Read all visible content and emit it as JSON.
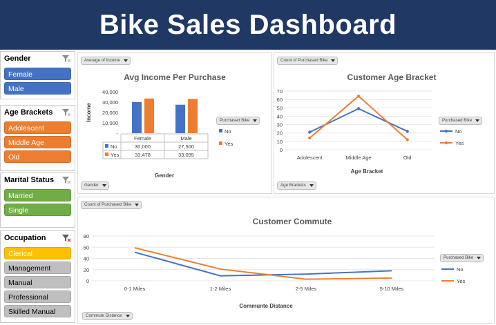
{
  "banner": {
    "title": "Bike Sales Dashboard"
  },
  "colors": {
    "banner": "#1f3864",
    "no": "#4472c4",
    "yes": "#ed7d31",
    "green": "#70ad47",
    "gold": "#ffc000",
    "grey": "#bfbfbf"
  },
  "slicers": {
    "gender": {
      "title": "Gender",
      "items": [
        "Female",
        "Male"
      ]
    },
    "age": {
      "title": "Age Brackets",
      "items": [
        "Adolescent",
        "Middle Age",
        "Old"
      ]
    },
    "marital": {
      "title": "Marital Status",
      "items": [
        "Married",
        "Single"
      ]
    },
    "occupation": {
      "title": "Occupation",
      "items": [
        "Clerical",
        "Management",
        "Manual",
        "Professional",
        "Skilled Manual"
      ]
    }
  },
  "income_panel": {
    "value_button": "Average of Income",
    "axis_button": "Gender",
    "legend_button": "Purchased Bike",
    "legend": [
      "No",
      "Yes"
    ],
    "table": {
      "headers": [
        "Female",
        "Male"
      ],
      "rows": [
        {
          "label": "No",
          "values": [
            "30,000",
            "27,500"
          ]
        },
        {
          "label": "Yes",
          "values": [
            "33,478",
            "33,095"
          ]
        }
      ]
    }
  },
  "age_panel": {
    "value_button": "Count of Purchased Bike",
    "axis_button": "Age Brackets",
    "legend_button": "Purchased Bike",
    "legend": [
      "No",
      "Yes"
    ]
  },
  "commute_panel": {
    "value_button": "Count of Purchased Bike",
    "axis_button": "Commute Distance",
    "legend_button": "Purchased Bike",
    "legend": [
      "No",
      "Yes"
    ]
  },
  "chart_data": [
    {
      "type": "bar",
      "title": "Avg Income Per Purchase",
      "xlabel": "Gender",
      "ylabel": "Income",
      "categories": [
        "Female",
        "Male"
      ],
      "series": [
        {
          "name": "No",
          "values": [
            30000,
            27500
          ]
        },
        {
          "name": "Yes",
          "values": [
            33478,
            33095
          ]
        }
      ],
      "ylim": [
        0,
        40000
      ],
      "yticks": [
        "40,000",
        "30,000",
        "20,000",
        "10,000",
        "-"
      ]
    },
    {
      "type": "line",
      "title": "Customer Age Bracket",
      "xlabel": "Age Bracket",
      "categories": [
        "Adolescent",
        "Middle Age",
        "Old"
      ],
      "series": [
        {
          "name": "No",
          "values": [
            21,
            49,
            22
          ]
        },
        {
          "name": "Yes",
          "values": [
            14,
            64,
            12
          ]
        }
      ],
      "ylim": [
        0,
        70
      ],
      "yticks": [
        "70",
        "60",
        "50",
        "40",
        "30",
        "20",
        "10",
        "0"
      ]
    },
    {
      "type": "line",
      "title": "Customer Commute",
      "xlabel": "Communte Distance",
      "categories": [
        "0-1 Miles",
        "1-2 Miles",
        "2-5 Miles",
        "5-10 Miles"
      ],
      "series": [
        {
          "name": "No",
          "values": [
            51,
            9,
            12,
            18
          ]
        },
        {
          "name": "Yes",
          "values": [
            59,
            21,
            3,
            5
          ]
        }
      ],
      "ylim": [
        0,
        80
      ],
      "yticks": [
        "80",
        "60",
        "40",
        "20",
        "0"
      ]
    }
  ]
}
